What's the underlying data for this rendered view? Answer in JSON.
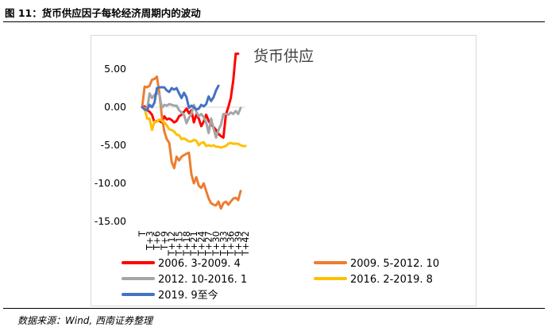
{
  "header": {
    "figure_title": "图 11：货币供应因子每轮经济周期内的波动"
  },
  "footer": {
    "source": "数据来源：Wind, 西南证券整理"
  },
  "colors": {
    "s1": "#ff0000",
    "s2": "#ed7d31",
    "s3": "#a5a5a5",
    "s4": "#ffc000",
    "s5": "#4472c4"
  },
  "chart_data": {
    "type": "line",
    "title": "货币供应",
    "xlabel": "",
    "ylabel": "",
    "ylim": [
      -15,
      7.5
    ],
    "y_ticks": [
      5,
      0,
      -5,
      -10,
      -15
    ],
    "y_tick_labels": [
      "5.00",
      "0.00",
      "-5.00",
      "-10.00",
      "-15.00"
    ],
    "x_tick_labels": [
      "T",
      "T+3",
      "T+6",
      "T+9",
      "T+12",
      "T+15",
      "T+18",
      "T+21",
      "T+24",
      "T+27",
      "T+30",
      "T+33",
      "T+36",
      "T+39",
      "T+42"
    ],
    "legend_position": "bottom",
    "series": [
      {
        "name": "2006. 3-2009. 4",
        "color": "#ff0000",
        "values": [
          0,
          0.1,
          -0.4,
          -0.6,
          -1.0,
          -2.0,
          -1.8,
          -1.8,
          -2.0,
          -1.2,
          -1.6,
          -1.5,
          -1.7,
          -2.0,
          -1.8,
          -1.2,
          -1.0,
          -0.6,
          -0.2,
          -0.8,
          -0.4,
          -2.0,
          -1.0,
          -1.5,
          -2.5,
          -1.9,
          -1.0,
          -1.8,
          -2.3,
          -2.6,
          -3.0,
          -3.5,
          -3.8,
          -4.0,
          -1.0,
          0,
          1.2,
          3.5,
          7.0,
          7.0
        ]
      },
      {
        "name": "2009. 5-2012. 10",
        "color": "#ed7d31",
        "values": [
          0,
          2.7,
          2.6,
          2.8,
          3.6,
          3.7,
          4.0,
          1.8,
          -1.2,
          -3.2,
          -4.2,
          -4.7,
          -7.2,
          -8.0,
          -6.5,
          -7.0,
          -6.5,
          -6.3,
          -6.1,
          -6.0,
          -8.8,
          -10.0,
          -9.2,
          -10.3,
          -10.6,
          -10.0,
          -11.0,
          -12.0,
          -12.6,
          -12.8,
          -12.9,
          -12.4,
          -13.3,
          -12.6,
          -12.4,
          -12.8,
          -12.4,
          -12.0,
          -11.9,
          -12.2,
          -11.0
        ]
      },
      {
        "name": "2012. 10-2016. 1",
        "color": "#a5a5a5",
        "values": [
          0,
          -0.1,
          -0.3,
          1.8,
          1.2,
          1.6,
          1.9,
          1.7,
          -0.1,
          0.3,
          0.2,
          0.4,
          0.3,
          0.2,
          0.2,
          -0.4,
          -0.7,
          -1.0,
          -2.1,
          -1.4,
          -0.9,
          0.3,
          -0.6,
          -1.2,
          -0.9,
          -1.3,
          -2.0,
          -3.4,
          -1.5,
          -2.8,
          -4.0,
          -3.0,
          -2.3,
          -0.9,
          -0.9,
          -1.0,
          -0.7,
          -0.9,
          -0.5,
          -0.9,
          -0.1
        ]
      },
      {
        "name": "2016. 2-2019. 8",
        "color": "#ffc000",
        "values": [
          0,
          -0.2,
          -1.5,
          -1.5,
          -3.0,
          -1.9,
          -1.9,
          -1.6,
          -1.8,
          -2.0,
          -2.4,
          -2.9,
          -3.0,
          -3.2,
          -3.6,
          -3.7,
          -4.2,
          -4.1,
          -4.3,
          -4.5,
          -4.5,
          -4.3,
          -4.4,
          -5.0,
          -4.7,
          -4.6,
          -5.1,
          -5.0,
          -5.1,
          -5.0,
          -5.2,
          -5.2,
          -5.3,
          -5.2,
          -5.1,
          -4.8,
          -4.7,
          -4.8,
          -4.8,
          -4.8,
          -5.0,
          -5.1,
          -5.1
        ]
      },
      {
        "name": "2019. 9至今",
        "color": "#4472c4",
        "values": [
          0,
          -0.3,
          -0.4,
          0.3,
          0.0,
          0.6,
          2.5,
          2.6,
          2.6,
          2.6,
          2.2,
          2.0,
          2.5,
          2.3,
          2.5,
          1.8,
          1.2,
          1.9,
          1.3,
          -0.1,
          0.2,
          0.0,
          -0.3,
          -0.2,
          0.3,
          0.1,
          0.4,
          1.4,
          0.8,
          1.3,
          2.2,
          2.8
        ]
      }
    ]
  }
}
